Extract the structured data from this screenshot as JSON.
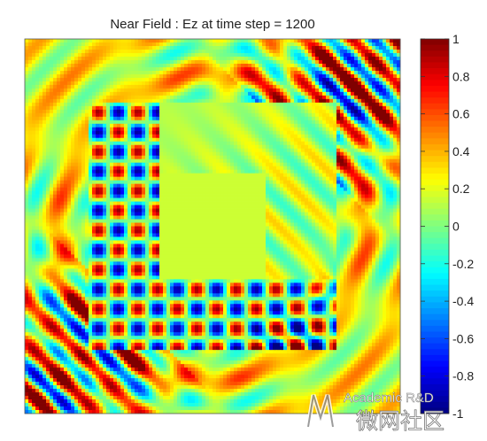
{
  "chart_data": {
    "type": "heatmap",
    "title": "Near Field : Ez at time step = 1200",
    "xlabel": "",
    "ylabel": "",
    "colormap": "jet",
    "colorbar": {
      "min": -1,
      "max": 1,
      "ticks": [
        1,
        0.8,
        0.6,
        0.4,
        0.2,
        0,
        -0.2,
        -0.4,
        -0.6,
        -0.8,
        -1
      ],
      "tick_labels": [
        "1",
        "0.8",
        "0.6",
        "0.4",
        "0.2",
        "0",
        "-0.2",
        "-0.4",
        "-0.6",
        "-0.8",
        "-1"
      ]
    },
    "field": {
      "quantity": "Ez",
      "time_step": 1200,
      "region_shape": "square domain with inner square region and square zero-field core",
      "value_range": [
        -1,
        1
      ],
      "inner_region_features": "checkerboard lobes along left edge and bottom edge; near-zero core",
      "outer_region_features": "concentric ripples with strong diagonal bands in top-right and bottom-left"
    },
    "grid": false
  },
  "watermark": {
    "text_en": "Academic R&D",
    "text_cn": "微网社区"
  }
}
